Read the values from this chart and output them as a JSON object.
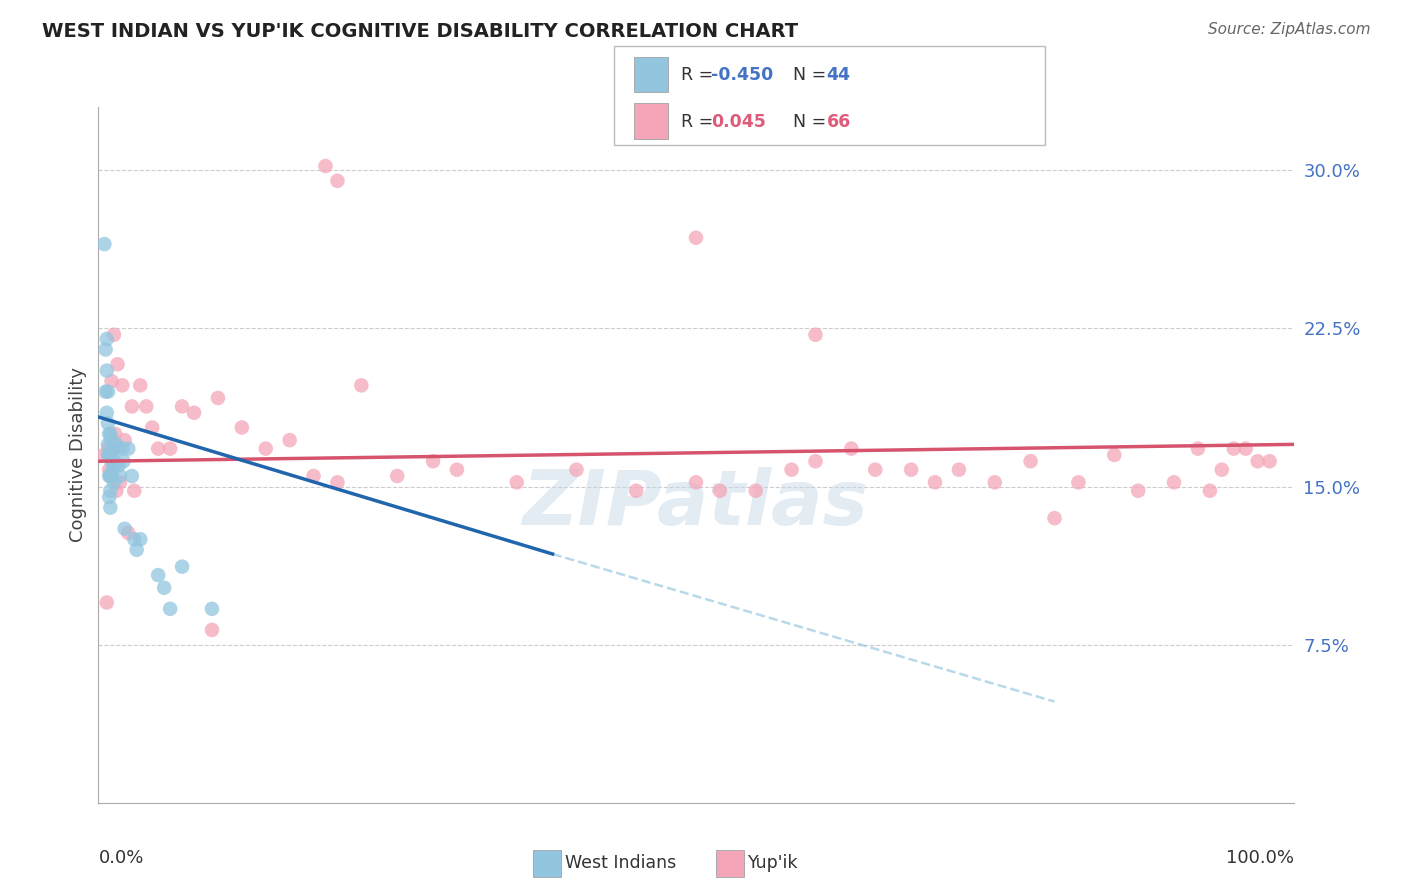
{
  "title": "WEST INDIAN VS YUP'IK COGNITIVE DISABILITY CORRELATION CHART",
  "source": "Source: ZipAtlas.com",
  "ylabel": "Cognitive Disability",
  "xlim": [
    0.0,
    1.0
  ],
  "ylim": [
    0.0,
    0.33
  ],
  "y_ticks": [
    0.075,
    0.15,
    0.225,
    0.3
  ],
  "y_tick_labels": [
    "7.5%",
    "15.0%",
    "22.5%",
    "30.0%"
  ],
  "bg_color": "#ffffff",
  "blue_color": "#92c5de",
  "pink_color": "#f4a6b8",
  "line_blue": "#2166ac",
  "line_pink": "#d6546e",
  "west_indians_x": [
    0.005,
    0.006,
    0.006,
    0.007,
    0.007,
    0.007,
    0.008,
    0.008,
    0.008,
    0.008,
    0.009,
    0.009,
    0.009,
    0.009,
    0.01,
    0.01,
    0.01,
    0.01,
    0.01,
    0.011,
    0.011,
    0.011,
    0.012,
    0.012,
    0.013,
    0.013,
    0.014,
    0.015,
    0.016,
    0.017,
    0.018,
    0.02,
    0.021,
    0.022,
    0.025,
    0.028,
    0.03,
    0.032,
    0.035,
    0.05,
    0.055,
    0.06,
    0.07,
    0.095
  ],
  "west_indians_y": [
    0.265,
    0.215,
    0.195,
    0.22,
    0.205,
    0.185,
    0.195,
    0.18,
    0.17,
    0.165,
    0.175,
    0.165,
    0.155,
    0.145,
    0.175,
    0.165,
    0.155,
    0.148,
    0.14,
    0.172,
    0.162,
    0.155,
    0.168,
    0.158,
    0.162,
    0.152,
    0.16,
    0.17,
    0.168,
    0.16,
    0.155,
    0.168,
    0.162,
    0.13,
    0.168,
    0.155,
    0.125,
    0.12,
    0.125,
    0.108,
    0.102,
    0.092,
    0.112,
    0.092
  ],
  "yupik_x": [
    0.005,
    0.007,
    0.008,
    0.009,
    0.01,
    0.011,
    0.012,
    0.013,
    0.014,
    0.015,
    0.016,
    0.018,
    0.02,
    0.022,
    0.025,
    0.028,
    0.03,
    0.035,
    0.04,
    0.045,
    0.05,
    0.06,
    0.07,
    0.08,
    0.1,
    0.12,
    0.14,
    0.16,
    0.18,
    0.2,
    0.22,
    0.25,
    0.28,
    0.3,
    0.35,
    0.4,
    0.45,
    0.5,
    0.52,
    0.55,
    0.58,
    0.6,
    0.63,
    0.65,
    0.68,
    0.7,
    0.72,
    0.75,
    0.78,
    0.8,
    0.82,
    0.85,
    0.87,
    0.9,
    0.92,
    0.93,
    0.94,
    0.95,
    0.96,
    0.97,
    0.98,
    0.2,
    0.5,
    0.6,
    0.095,
    0.19
  ],
  "yupik_y": [
    0.165,
    0.095,
    0.168,
    0.158,
    0.155,
    0.2,
    0.168,
    0.222,
    0.175,
    0.148,
    0.208,
    0.152,
    0.198,
    0.172,
    0.128,
    0.188,
    0.148,
    0.198,
    0.188,
    0.178,
    0.168,
    0.168,
    0.188,
    0.185,
    0.192,
    0.178,
    0.168,
    0.172,
    0.155,
    0.152,
    0.198,
    0.155,
    0.162,
    0.158,
    0.152,
    0.158,
    0.148,
    0.152,
    0.148,
    0.148,
    0.158,
    0.162,
    0.168,
    0.158,
    0.158,
    0.152,
    0.158,
    0.152,
    0.162,
    0.135,
    0.152,
    0.165,
    0.148,
    0.152,
    0.168,
    0.148,
    0.158,
    0.168,
    0.168,
    0.162,
    0.162,
    0.295,
    0.268,
    0.222,
    0.082,
    0.302
  ],
  "trend_blue_x0": 0.0,
  "trend_blue_x1": 0.38,
  "trend_blue_y0": 0.183,
  "trend_blue_y1": 0.118,
  "trend_blue_dashed_x0": 0.38,
  "trend_blue_dashed_x1": 0.8,
  "trend_blue_dashed_y0": 0.118,
  "trend_blue_dashed_y1": 0.048,
  "trend_pink_x0": 0.0,
  "trend_pink_x1": 1.0,
  "trend_pink_y0": 0.162,
  "trend_pink_y1": 0.17,
  "watermark": "ZIPatlas",
  "watermark_color": "#c8d8e8",
  "title_color": "#222222",
  "source_color": "#666666",
  "tick_label_color": "#4472c4",
  "ylabel_color": "#444444",
  "grid_color": "#cccccc",
  "legend_blue_r": "-0.450",
  "legend_blue_n": "44",
  "legend_pink_r": "0.045",
  "legend_pink_n": "66",
  "legend_r_color_blue": "#4472c4",
  "legend_r_color_pink": "#e05a7a",
  "legend_n_color": "#4472c4"
}
